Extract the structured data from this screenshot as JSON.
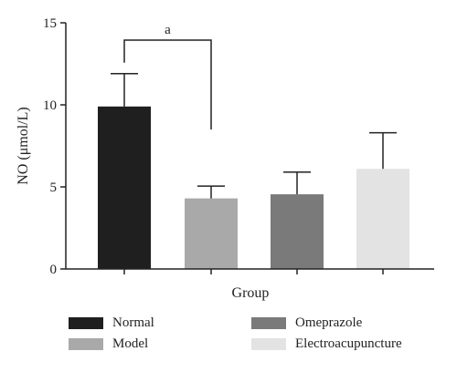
{
  "chart_data": {
    "type": "bar",
    "categories": [
      "Normal",
      "Model",
      "Omeprazole",
      "Electroacupuncture"
    ],
    "values": [
      9.9,
      4.3,
      4.55,
      6.1
    ],
    "errors": [
      2.0,
      0.75,
      1.35,
      2.2
    ],
    "colors": [
      "#1f1f1f",
      "#a9a9a9",
      "#7a7a7a",
      "#e3e3e3"
    ],
    "xlabel": "Group",
    "ylabel": "NO (μmol/L)",
    "ylim": [
      0,
      15
    ],
    "yticks": [
      "0",
      "5",
      "10",
      "15"
    ],
    "yticks_values": [
      0,
      5,
      10,
      15
    ],
    "legend_position": "bottom",
    "grid": false,
    "annotation": {
      "label": "a",
      "from": "Normal",
      "to": "Model"
    }
  }
}
